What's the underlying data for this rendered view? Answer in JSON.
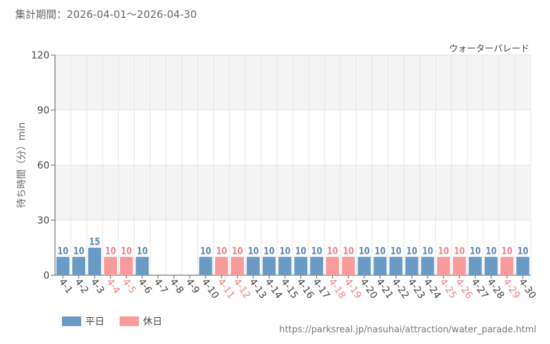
{
  "header": {
    "period_label": "集計期間：2026-04-01～2026-04-30"
  },
  "attraction_name": "ウォーターパレード",
  "source_url": "https://parksreal.jp/nasuhai/attraction/water_parade.html",
  "legend": {
    "weekday": "平日",
    "holiday": "休日"
  },
  "colors": {
    "weekday": "#6b9bc5",
    "holiday": "#f79b9b",
    "weekday_text": "#5a87b5",
    "holiday_text": "#f08080"
  },
  "chart_data": {
    "type": "bar",
    "ylabel": "待ち時間（分）min",
    "ylim": [
      0,
      120
    ],
    "yticks": [
      0,
      30,
      60,
      90,
      120
    ],
    "grid": true,
    "legend_position": "bottom-left",
    "categories": [
      "4-1",
      "4-2",
      "4-3",
      "4-4",
      "4-5",
      "4-6",
      "4-7",
      "4-8",
      "4-9",
      "4-10",
      "4-11",
      "4-12",
      "4-13",
      "4-14",
      "4-15",
      "4-16",
      "4-17",
      "4-18",
      "4-19",
      "4-20",
      "4-21",
      "4-22",
      "4-23",
      "4-24",
      "4-25",
      "4-26",
      "4-27",
      "4-28",
      "4-29",
      "4-30"
    ],
    "values": [
      10,
      10,
      15,
      10,
      10,
      10,
      null,
      null,
      null,
      10,
      10,
      10,
      10,
      10,
      10,
      10,
      10,
      10,
      10,
      10,
      10,
      10,
      10,
      10,
      10,
      10,
      10,
      10,
      10,
      10
    ],
    "day_type": [
      "weekday",
      "weekday",
      "weekday",
      "holiday",
      "holiday",
      "weekday",
      "weekday",
      "weekday",
      "weekday",
      "weekday",
      "holiday",
      "holiday",
      "weekday",
      "weekday",
      "weekday",
      "weekday",
      "weekday",
      "holiday",
      "holiday",
      "weekday",
      "weekday",
      "weekday",
      "weekday",
      "weekday",
      "holiday",
      "holiday",
      "weekday",
      "weekday",
      "holiday",
      "weekday"
    ]
  }
}
